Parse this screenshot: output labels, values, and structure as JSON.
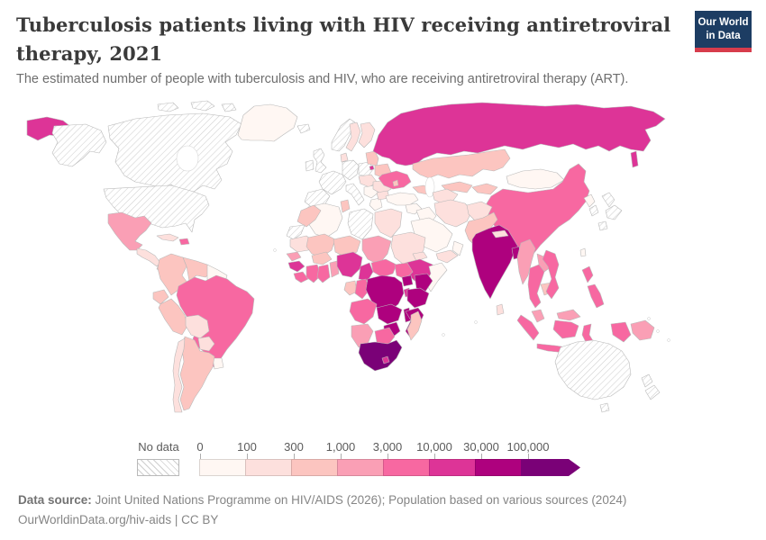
{
  "header": {
    "title": "Tuberculosis patients living with HIV receiving antiretroviral therapy, 2021",
    "subtitle": "The estimated number of people with tuberculosis and HIV, who are receiving antiretroviral therapy (ART)."
  },
  "logo": {
    "line1": "Our World",
    "line2": "in Data"
  },
  "legend": {
    "no_data_label": "No data",
    "tick_labels": [
      "0",
      "100",
      "300",
      "1,000",
      "3,000",
      "10,000",
      "30,000",
      "100,000"
    ]
  },
  "footer": {
    "source_label": "Data source:",
    "source_text": " Joint United Nations Programme on HIV/AIDS (2026); Population based on various sources (2024)",
    "license_line": "OurWorldinData.org/hiv-aids | CC BY"
  },
  "chart_data": {
    "type": "choropleth_map",
    "title": "Tuberculosis patients living with HIV receiving antiretroviral therapy, 2021",
    "unit": "people with TB and HIV receiving ART",
    "legend_position": "bottom",
    "bins": {
      "thresholds": [
        0,
        100,
        300,
        1000,
        3000,
        10000,
        30000,
        100000
      ],
      "labels": [
        "0–100",
        "100–300",
        "300–1,000",
        "1,000–3,000",
        "3,000–10,000",
        "10,000–30,000",
        "30,000–100,000",
        "100,000+"
      ],
      "colors": [
        "#fff7f3",
        "#fde0dd",
        "#fcc5c0",
        "#fa9fb5",
        "#f768a1",
        "#dd3497",
        "#ae017e",
        "#7a0177"
      ]
    },
    "no_data": {
      "label": "No data",
      "pattern": "diagonal-hatch",
      "line_color": "#cfcfcf"
    },
    "regions": [
      {
        "id": "united-states",
        "name": "United States",
        "bin": -1
      },
      {
        "id": "canada",
        "name": "Canada",
        "bin": -1
      },
      {
        "id": "greenland",
        "name": "Greenland",
        "bin": 0
      },
      {
        "id": "iceland",
        "name": "Iceland",
        "bin": -1
      },
      {
        "id": "mexico",
        "name": "Mexico",
        "bin": 3
      },
      {
        "id": "central-america",
        "name": "Central America",
        "bin": 1
      },
      {
        "id": "panama",
        "name": "Panama",
        "bin": 2
      },
      {
        "id": "cuba",
        "name": "Cuba",
        "bin": 1
      },
      {
        "id": "hispaniola",
        "name": "Haiti / Dominican Republic",
        "bin": 4
      },
      {
        "id": "colombia",
        "name": "Colombia",
        "bin": 2
      },
      {
        "id": "venezuela",
        "name": "Venezuela",
        "bin": 2
      },
      {
        "id": "guyana-suriname",
        "name": "Guyana / Suriname",
        "bin": 0
      },
      {
        "id": "ecuador",
        "name": "Ecuador",
        "bin": 2
      },
      {
        "id": "peru",
        "name": "Peru",
        "bin": 2
      },
      {
        "id": "brazil",
        "name": "Brazil",
        "bin": 4
      },
      {
        "id": "bolivia",
        "name": "Bolivia",
        "bin": 1
      },
      {
        "id": "paraguay",
        "name": "Paraguay",
        "bin": 1
      },
      {
        "id": "uruguay",
        "name": "Uruguay",
        "bin": 0
      },
      {
        "id": "argentina",
        "name": "Argentina",
        "bin": 2
      },
      {
        "id": "chile",
        "name": "Chile",
        "bin": 1
      },
      {
        "id": "united-kingdom",
        "name": "United Kingdom",
        "bin": -1
      },
      {
        "id": "ireland",
        "name": "Ireland",
        "bin": -1
      },
      {
        "id": "norway",
        "name": "Norway",
        "bin": -1
      },
      {
        "id": "sweden",
        "name": "Sweden",
        "bin": 1
      },
      {
        "id": "finland",
        "name": "Finland",
        "bin": 1
      },
      {
        "id": "denmark",
        "name": "Denmark",
        "bin": 1
      },
      {
        "id": "france",
        "name": "France",
        "bin": -1
      },
      {
        "id": "spain",
        "name": "Spain / Portugal",
        "bin": -1
      },
      {
        "id": "germany",
        "name": "Germany",
        "bin": -1
      },
      {
        "id": "poland",
        "name": "Poland",
        "bin": -1
      },
      {
        "id": "italy",
        "name": "Italy",
        "bin": -1
      },
      {
        "id": "central-europe",
        "name": "Czechia / Slovakia / Hungary",
        "bin": 1
      },
      {
        "id": "balkans",
        "name": "Balkans",
        "bin": 0
      },
      {
        "id": "greece",
        "name": "Greece",
        "bin": 0
      },
      {
        "id": "romania",
        "name": "Romania",
        "bin": 1
      },
      {
        "id": "bulgaria",
        "name": "Bulgaria",
        "bin": 1
      },
      {
        "id": "baltic-states",
        "name": "Baltic states",
        "bin": 2
      },
      {
        "id": "belarus",
        "name": "Belarus",
        "bin": 2
      },
      {
        "id": "ukraine",
        "name": "Ukraine",
        "bin": 4
      },
      {
        "id": "moldova",
        "name": "Moldova",
        "bin": 2
      },
      {
        "id": "turkey",
        "name": "Turkey",
        "bin": 0
      },
      {
        "id": "caucasus",
        "name": "Caucasus",
        "bin": 2
      },
      {
        "id": "russia",
        "name": "Russia",
        "bin": 5
      },
      {
        "id": "kazakhstan",
        "name": "Kazakhstan",
        "bin": 2
      },
      {
        "id": "uzbekistan",
        "name": "Uzbekistan",
        "bin": 2
      },
      {
        "id": "turkmenistan",
        "name": "Turkmenistan",
        "bin": 1
      },
      {
        "id": "kyrgyzstan-tajikistan",
        "name": "Kyrgyzstan / Tajikistan",
        "bin": 2
      },
      {
        "id": "mongolia",
        "name": "Mongolia",
        "bin": 0
      },
      {
        "id": "china",
        "name": "China",
        "bin": 4
      },
      {
        "id": "north-korea",
        "name": "North Korea",
        "bin": 0
      },
      {
        "id": "south-korea",
        "name": "South Korea",
        "bin": -1
      },
      {
        "id": "japan",
        "name": "Japan",
        "bin": -1
      },
      {
        "id": "taiwan",
        "name": "Taiwan",
        "bin": 0
      },
      {
        "id": "syria",
        "name": "Syria / Levant",
        "bin": 0
      },
      {
        "id": "iraq",
        "name": "Iraq",
        "bin": 0
      },
      {
        "id": "saudi-arabia",
        "name": "Saudi Arabia",
        "bin": 0
      },
      {
        "id": "yemen",
        "name": "Yemen",
        "bin": 1
      },
      {
        "id": "oman",
        "name": "Oman",
        "bin": 0
      },
      {
        "id": "iran",
        "name": "Iran",
        "bin": 1
      },
      {
        "id": "afghanistan",
        "name": "Afghanistan",
        "bin": 1
      },
      {
        "id": "pakistan",
        "name": "Pakistan",
        "bin": 2
      },
      {
        "id": "india",
        "name": "India",
        "bin": 6
      },
      {
        "id": "nepal",
        "name": "Nepal",
        "bin": 1
      },
      {
        "id": "bangladesh",
        "name": "Bangladesh",
        "bin": 6
      },
      {
        "id": "sri-lanka",
        "name": "Sri Lanka",
        "bin": 1
      },
      {
        "id": "myanmar",
        "name": "Myanmar",
        "bin": 3
      },
      {
        "id": "thailand",
        "name": "Thailand",
        "bin": 4
      },
      {
        "id": "laos",
        "name": "Laos",
        "bin": 3
      },
      {
        "id": "cambodia",
        "name": "Cambodia",
        "bin": 2
      },
      {
        "id": "vietnam",
        "name": "Vietnam",
        "bin": 4
      },
      {
        "id": "malaysia",
        "name": "Malaysia",
        "bin": 3
      },
      {
        "id": "indonesia",
        "name": "Indonesia",
        "bin": 4
      },
      {
        "id": "philippines",
        "name": "Philippines",
        "bin": 4
      },
      {
        "id": "papua-new-guinea",
        "name": "Papua New Guinea",
        "bin": 3
      },
      {
        "id": "australia",
        "name": "Australia",
        "bin": -1
      },
      {
        "id": "new-zealand",
        "name": "New Zealand",
        "bin": -1
      },
      {
        "id": "morocco",
        "name": "Morocco",
        "bin": 2
      },
      {
        "id": "western-sahara",
        "name": "Western Sahara",
        "bin": -1
      },
      {
        "id": "algeria",
        "name": "Algeria",
        "bin": 0
      },
      {
        "id": "tunisia",
        "name": "Tunisia",
        "bin": 2
      },
      {
        "id": "libya",
        "name": "Libya",
        "bin": -1
      },
      {
        "id": "egypt",
        "name": "Egypt",
        "bin": 1
      },
      {
        "id": "mauritania",
        "name": "Mauritania",
        "bin": 1
      },
      {
        "id": "mali",
        "name": "Mali",
        "bin": 2
      },
      {
        "id": "niger",
        "name": "Niger",
        "bin": 2
      },
      {
        "id": "chad",
        "name": "Chad",
        "bin": 3
      },
      {
        "id": "sudan",
        "name": "Sudan",
        "bin": 1
      },
      {
        "id": "eritrea",
        "name": "Eritrea",
        "bin": 1
      },
      {
        "id": "ethiopia",
        "name": "Ethiopia",
        "bin": 5
      },
      {
        "id": "somalia",
        "name": "Somalia",
        "bin": 0
      },
      {
        "id": "senegal",
        "name": "Senegal / Gambia",
        "bin": 3
      },
      {
        "id": "guinea",
        "name": "Guinea",
        "bin": 5
      },
      {
        "id": "sierra-leone-liberia",
        "name": "Sierra Leone / Liberia",
        "bin": 4
      },
      {
        "id": "cote-divoire",
        "name": "Côte d'Ivoire",
        "bin": 4
      },
      {
        "id": "ghana",
        "name": "Ghana",
        "bin": 4
      },
      {
        "id": "togo-benin",
        "name": "Togo / Benin",
        "bin": 3
      },
      {
        "id": "burkina-faso",
        "name": "Burkina Faso",
        "bin": 2
      },
      {
        "id": "nigeria",
        "name": "Nigeria",
        "bin": 5
      },
      {
        "id": "cameroon",
        "name": "Cameroon",
        "bin": 5
      },
      {
        "id": "central-african-republic",
        "name": "Central African Republic",
        "bin": 4
      },
      {
        "id": "south-sudan",
        "name": "South Sudan",
        "bin": 4
      },
      {
        "id": "gabon",
        "name": "Gabon",
        "bin": 2
      },
      {
        "id": "congo",
        "name": "Congo",
        "bin": 4
      },
      {
        "id": "drc",
        "name": "Democratic Republic of Congo",
        "bin": 6
      },
      {
        "id": "uganda",
        "name": "Uganda",
        "bin": 6
      },
      {
        "id": "kenya",
        "name": "Kenya",
        "bin": 6
      },
      {
        "id": "rwanda-burundi",
        "name": "Rwanda / Burundi",
        "bin": 5
      },
      {
        "id": "tanzania",
        "name": "Tanzania",
        "bin": 6
      },
      {
        "id": "angola",
        "name": "Angola",
        "bin": 4
      },
      {
        "id": "zambia",
        "name": "Zambia",
        "bin": 6
      },
      {
        "id": "malawi",
        "name": "Malawi",
        "bin": 6
      },
      {
        "id": "mozambique",
        "name": "Mozambique",
        "bin": 6
      },
      {
        "id": "zimbabwe",
        "name": "Zimbabwe",
        "bin": 6
      },
      {
        "id": "botswana",
        "name": "Botswana",
        "bin": 4
      },
      {
        "id": "namibia",
        "name": "Namibia",
        "bin": 3
      },
      {
        "id": "south-africa",
        "name": "South Africa",
        "bin": 7
      },
      {
        "id": "lesotho",
        "name": "Lesotho",
        "bin": 5
      },
      {
        "id": "madagascar",
        "name": "Madagascar",
        "bin": 2
      }
    ]
  }
}
